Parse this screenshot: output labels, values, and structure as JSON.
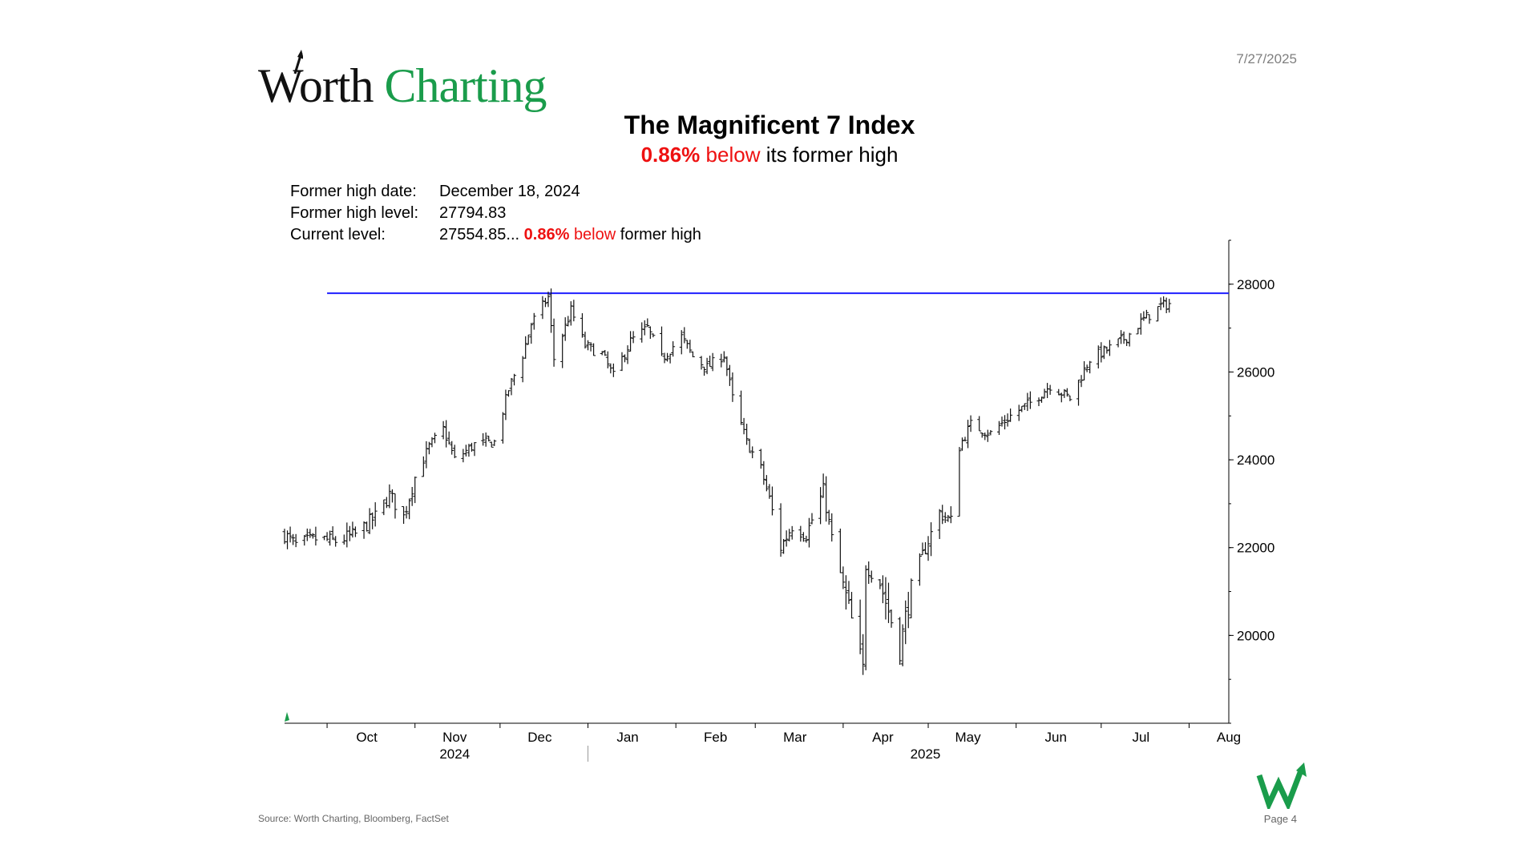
{
  "header": {
    "logo_word1": "Worth",
    "logo_word2": "Charting",
    "date": "7/27/2025"
  },
  "title": "The Magnificent 7 Index",
  "subtitle": {
    "pct": "0.86%",
    "below": "below",
    "rest": "its former high"
  },
  "info": {
    "former_high_date_label": "Former high date:",
    "former_high_date_value": "December 18, 2024",
    "former_high_level_label": "Former high level:",
    "former_high_level_value": "27794.83",
    "current_level_label": "Current level:",
    "current_level_value": "27554.85...",
    "current_pct": "0.86%",
    "current_below": "below",
    "current_rest": "former high"
  },
  "footer": {
    "source": "Source: Worth Charting, Bloomberg, FactSet",
    "page": "Page 4"
  },
  "colors": {
    "brand_green": "#1a9c4b",
    "accent_red": "#ee1111",
    "high_line": "#1f1fff",
    "bars": "#111111"
  },
  "chart_data": {
    "type": "ohlc",
    "title": "The Magnificent 7 Index",
    "xlim": [
      "2024-09-16",
      "2025-08-15"
    ],
    "ylim": [
      18000,
      29000
    ],
    "y_ticks": [
      20000,
      22000,
      24000,
      26000,
      28000
    ],
    "x_month_labels": [
      {
        "label": "Oct",
        "date": "2024-10-15"
      },
      {
        "label": "Nov",
        "date": "2024-11-15"
      },
      {
        "label": "Dec",
        "date": "2024-12-15"
      },
      {
        "label": "Jan",
        "date": "2025-01-15"
      },
      {
        "label": "Feb",
        "date": "2025-02-15"
      },
      {
        "label": "Mar",
        "date": "2025-03-15"
      },
      {
        "label": "Apr",
        "date": "2025-04-15"
      },
      {
        "label": "May",
        "date": "2025-05-15"
      },
      {
        "label": "Jun",
        "date": "2025-06-15"
      },
      {
        "label": "Jul",
        "date": "2025-07-15"
      },
      {
        "label": "Aug",
        "date": "2025-08-15"
      }
    ],
    "x_year_labels": [
      {
        "label": "2024",
        "date": "2024-11-15"
      },
      {
        "label": "2025",
        "date": "2025-04-30"
      }
    ],
    "former_high": {
      "level": 27794.83,
      "date": "2024-12-18"
    },
    "grid": false,
    "legend": "none",
    "close_path": [
      [
        "2024-09-16",
        22300
      ],
      [
        "2024-09-20",
        22050
      ],
      [
        "2024-09-27",
        22200
      ],
      [
        "2024-10-04",
        22150
      ],
      [
        "2024-10-11",
        22300
      ],
      [
        "2024-10-18",
        22700
      ],
      [
        "2024-10-23",
        23200
      ],
      [
        "2024-10-28",
        22700
      ],
      [
        "2024-11-01",
        23600
      ],
      [
        "2024-11-06",
        24300
      ],
      [
        "2024-11-11",
        24700
      ],
      [
        "2024-11-15",
        24000
      ],
      [
        "2024-11-22",
        24350
      ],
      [
        "2024-11-29",
        24400
      ],
      [
        "2024-12-04",
        25600
      ],
      [
        "2024-12-09",
        26400
      ],
      [
        "2024-12-12",
        27100
      ],
      [
        "2024-12-18",
        27700
      ],
      [
        "2024-12-20",
        26300
      ],
      [
        "2024-12-26",
        27400
      ],
      [
        "2024-12-31",
        26600
      ],
      [
        "2025-01-06",
        26400
      ],
      [
        "2025-01-10",
        25900
      ],
      [
        "2025-01-16",
        26700
      ],
      [
        "2025-01-22",
        27000
      ],
      [
        "2025-01-27",
        26300
      ],
      [
        "2025-02-03",
        26800
      ],
      [
        "2025-02-07",
        26350
      ],
      [
        "2025-02-12",
        26100
      ],
      [
        "2025-02-18",
        26400
      ],
      [
        "2025-02-21",
        25400
      ],
      [
        "2025-02-26",
        24400
      ],
      [
        "2025-03-03",
        23800
      ],
      [
        "2025-03-06",
        23100
      ],
      [
        "2025-03-10",
        22000
      ],
      [
        "2025-03-14",
        22500
      ],
      [
        "2025-03-19",
        22300
      ],
      [
        "2025-03-25",
        23300
      ],
      [
        "2025-03-28",
        22200
      ],
      [
        "2025-04-03",
        20600
      ],
      [
        "2025-04-08",
        19200
      ],
      [
        "2025-04-09",
        21600
      ],
      [
        "2025-04-14",
        21200
      ],
      [
        "2025-04-21",
        19700
      ],
      [
        "2025-04-25",
        21100
      ],
      [
        "2025-04-30",
        22000
      ],
      [
        "2025-05-05",
        22800
      ],
      [
        "2025-05-09",
        22600
      ],
      [
        "2025-05-12",
        24300
      ],
      [
        "2025-05-16",
        24800
      ],
      [
        "2025-05-23",
        24600
      ],
      [
        "2025-05-30",
        25000
      ],
      [
        "2025-06-06",
        25300
      ],
      [
        "2025-06-13",
        25700
      ],
      [
        "2025-06-20",
        25400
      ],
      [
        "2025-06-27",
        26300
      ],
      [
        "2025-07-03",
        26500
      ],
      [
        "2025-07-10",
        26800
      ],
      [
        "2025-07-16",
        27200
      ],
      [
        "2025-07-22",
        27500
      ],
      [
        "2025-07-25",
        27555
      ]
    ]
  }
}
